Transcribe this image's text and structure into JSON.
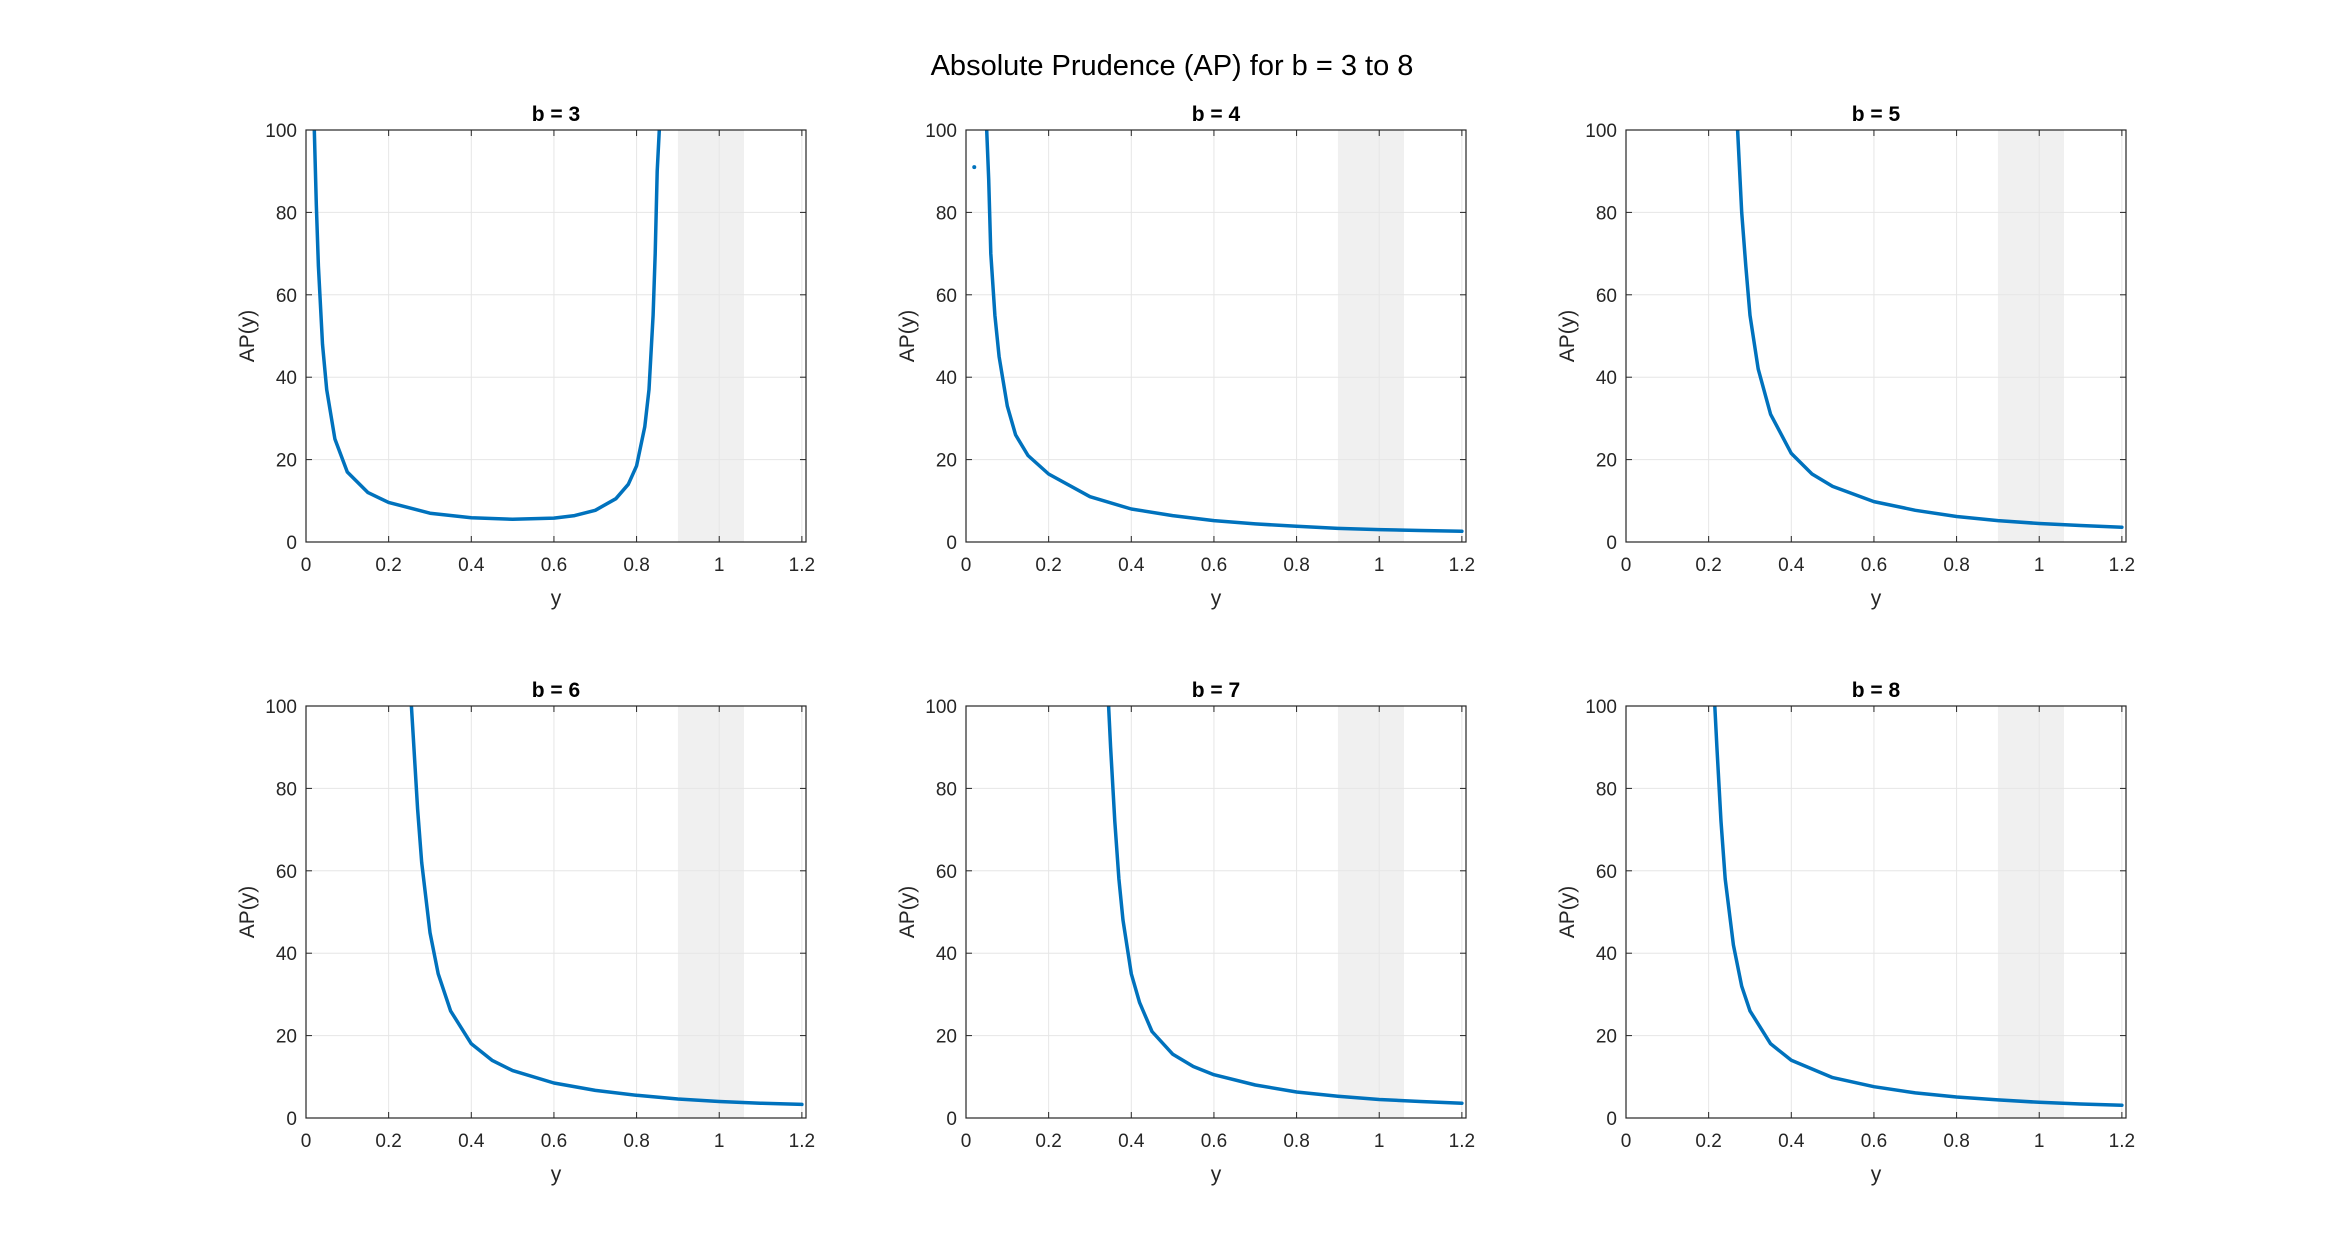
{
  "figure": {
    "title": "Absolute Prudence (AP) for b = 3 to 8"
  },
  "chart_data": [
    {
      "type": "line",
      "title": "b = 3",
      "xlabel": "y",
      "ylabel": "AP(y)",
      "xlim": [
        0,
        1.21
      ],
      "ylim": [
        0,
        100
      ],
      "xticks": [
        "0",
        "0.2",
        "0.4",
        "0.6",
        "0.8",
        "1",
        "1.2"
      ],
      "yticks": [
        "0",
        "20",
        "40",
        "60",
        "80",
        "100"
      ],
      "grid": true,
      "shaded_band": [
        0.9,
        1.06
      ],
      "color": "#0072BD",
      "series": [
        {
          "x": [
            0.02,
            0.025,
            0.03,
            0.04,
            0.05,
            0.07,
            0.1,
            0.15,
            0.2,
            0.3,
            0.4,
            0.5,
            0.6,
            0.65,
            0.7,
            0.75,
            0.78,
            0.8,
            0.82,
            0.83,
            0.84,
            0.845,
            0.85,
            0.855
          ],
          "y": [
            100,
            82,
            67,
            48,
            37,
            25,
            17,
            12,
            9.6,
            7,
            5.9,
            5.5,
            5.8,
            6.4,
            7.7,
            10.5,
            14,
            18.5,
            28,
            37,
            55,
            70,
            90,
            100
          ]
        }
      ]
    },
    {
      "type": "line",
      "title": "b = 4",
      "xlabel": "y",
      "ylabel": "AP(y)",
      "xlim": [
        0,
        1.21
      ],
      "ylim": [
        0,
        100
      ],
      "xticks": [
        "0",
        "0.2",
        "0.4",
        "0.6",
        "0.8",
        "1",
        "1.2"
      ],
      "yticks": [
        "0",
        "20",
        "40",
        "60",
        "80",
        "100"
      ],
      "grid": true,
      "shaded_band": [
        0.9,
        1.06
      ],
      "color": "#0072BD",
      "series": [
        {
          "x": [
            0.05,
            0.055,
            0.06,
            0.07,
            0.08,
            0.1,
            0.12,
            0.15,
            0.2,
            0.3,
            0.4,
            0.5,
            0.6,
            0.7,
            0.8,
            0.9,
            1.0,
            1.1,
            1.2
          ],
          "y": [
            100,
            88,
            70,
            55,
            45,
            33,
            26,
            21,
            16.5,
            11,
            8,
            6.4,
            5.2,
            4.4,
            3.8,
            3.3,
            3,
            2.8,
            2.6
          ]
        }
      ],
      "outlier_points": [
        {
          "x": 0.02,
          "y": 91
        }
      ]
    },
    {
      "type": "line",
      "title": "b = 5",
      "xlabel": "y",
      "ylabel": "AP(y)",
      "xlim": [
        0,
        1.21
      ],
      "ylim": [
        0,
        100
      ],
      "xticks": [
        "0",
        "0.2",
        "0.4",
        "0.6",
        "0.8",
        "1",
        "1.2"
      ],
      "yticks": [
        "0",
        "20",
        "40",
        "60",
        "80",
        "100"
      ],
      "grid": true,
      "shaded_band": [
        0.9,
        1.06
      ],
      "color": "#0072BD",
      "series": [
        {
          "x": [
            0.27,
            0.28,
            0.29,
            0.3,
            0.32,
            0.35,
            0.4,
            0.45,
            0.5,
            0.6,
            0.7,
            0.8,
            0.9,
            1.0,
            1.1,
            1.2
          ],
          "y": [
            100,
            80,
            67,
            55,
            42,
            31,
            21.5,
            16.5,
            13.5,
            9.8,
            7.7,
            6.2,
            5.2,
            4.5,
            4,
            3.6
          ]
        }
      ]
    },
    {
      "type": "line",
      "title": "b = 6",
      "xlabel": "y",
      "ylabel": "AP(y)",
      "xlim": [
        0,
        1.21
      ],
      "ylim": [
        0,
        100
      ],
      "xticks": [
        "0",
        "0.2",
        "0.4",
        "0.6",
        "0.8",
        "1",
        "1.2"
      ],
      "yticks": [
        "0",
        "20",
        "40",
        "60",
        "80",
        "100"
      ],
      "grid": true,
      "shaded_band": [
        0.9,
        1.06
      ],
      "color": "#0072BD",
      "series": [
        {
          "x": [
            0.255,
            0.26,
            0.27,
            0.28,
            0.3,
            0.32,
            0.35,
            0.4,
            0.45,
            0.5,
            0.6,
            0.7,
            0.8,
            0.9,
            1.0,
            1.1,
            1.2
          ],
          "y": [
            100,
            92,
            75,
            62,
            45,
            35,
            26,
            18,
            14,
            11.5,
            8.5,
            6.7,
            5.5,
            4.6,
            4,
            3.6,
            3.3
          ]
        }
      ]
    },
    {
      "type": "line",
      "title": "b = 7",
      "xlabel": "y",
      "ylabel": "AP(y)",
      "xlim": [
        0,
        1.21
      ],
      "ylim": [
        0,
        100
      ],
      "xticks": [
        "0",
        "0.2",
        "0.4",
        "0.6",
        "0.8",
        "1",
        "1.2"
      ],
      "yticks": [
        "0",
        "20",
        "40",
        "60",
        "80",
        "100"
      ],
      "grid": true,
      "shaded_band": [
        0.9,
        1.06
      ],
      "color": "#0072BD",
      "series": [
        {
          "x": [
            0.345,
            0.35,
            0.36,
            0.37,
            0.38,
            0.4,
            0.42,
            0.45,
            0.5,
            0.55,
            0.6,
            0.7,
            0.8,
            0.9,
            1.0,
            1.1,
            1.2
          ],
          "y": [
            100,
            90,
            72,
            58,
            48,
            35,
            28,
            21,
            15.5,
            12.5,
            10.5,
            8,
            6.3,
            5.3,
            4.5,
            4,
            3.6
          ]
        }
      ]
    },
    {
      "type": "line",
      "title": "b = 8",
      "xlabel": "y",
      "ylabel": "AP(y)",
      "xlim": [
        0,
        1.21
      ],
      "ylim": [
        0,
        100
      ],
      "xticks": [
        "0",
        "0.2",
        "0.4",
        "0.6",
        "0.8",
        "1",
        "1.2"
      ],
      "yticks": [
        "0",
        "20",
        "40",
        "60",
        "80",
        "100"
      ],
      "grid": true,
      "shaded_band": [
        0.9,
        1.06
      ],
      "color": "#0072BD",
      "series": [
        {
          "x": [
            0.215,
            0.22,
            0.23,
            0.24,
            0.26,
            0.28,
            0.3,
            0.35,
            0.4,
            0.5,
            0.6,
            0.7,
            0.8,
            0.9,
            1.0,
            1.1,
            1.2
          ],
          "y": [
            100,
            90,
            72,
            58,
            42,
            32,
            26,
            18,
            14,
            9.8,
            7.6,
            6.1,
            5.1,
            4.4,
            3.8,
            3.4,
            3.1
          ]
        }
      ]
    }
  ]
}
